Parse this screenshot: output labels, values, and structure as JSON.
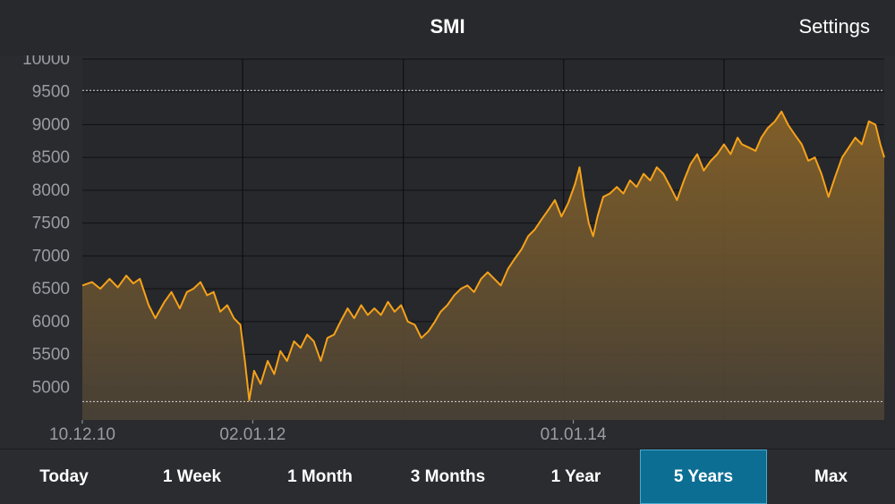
{
  "header": {
    "title": "SMI",
    "settings_label": "Settings"
  },
  "tabs": [
    {
      "label": "Today",
      "active": false
    },
    {
      "label": "1 Week",
      "active": false
    },
    {
      "label": "1 Month",
      "active": false
    },
    {
      "label": "3 Months",
      "active": false
    },
    {
      "label": "1 Year",
      "active": false
    },
    {
      "label": "5 Years",
      "active": true
    },
    {
      "label": "Max",
      "active": false
    }
  ],
  "colors": {
    "line": "#f5a21a",
    "fill_top": "#8a6428",
    "fill_bottom": "#4a4236",
    "active_tab": "#0d6e94",
    "background": "#2a2b2f"
  },
  "chart_data": {
    "type": "area",
    "title": "",
    "xlabel": "",
    "ylabel": "",
    "ylim": [
      4500,
      10000
    ],
    "yticks": [
      5000,
      5500,
      6000,
      6500,
      7000,
      7500,
      8000,
      8500,
      9000,
      9500,
      10000
    ],
    "xticks": [
      "10.12.10",
      "02.01.12",
      "01.01.14"
    ],
    "xlim": [
      "2010-12-10",
      "2015-12-10"
    ],
    "grid": true,
    "reference_lines": [
      9520,
      4780
    ],
    "series": [
      {
        "values": [
          [
            "2010-12-10",
            6550
          ],
          [
            "2011-01-01",
            6600
          ],
          [
            "2011-01-20",
            6500
          ],
          [
            "2011-02-10",
            6650
          ],
          [
            "2011-03-01",
            6520
          ],
          [
            "2011-03-20",
            6700
          ],
          [
            "2011-04-05",
            6580
          ],
          [
            "2011-04-20",
            6650
          ],
          [
            "2011-05-10",
            6250
          ],
          [
            "2011-05-25",
            6050
          ],
          [
            "2011-06-15",
            6300
          ],
          [
            "2011-07-01",
            6450
          ],
          [
            "2011-07-20",
            6200
          ],
          [
            "2011-08-05",
            6450
          ],
          [
            "2011-08-20",
            6500
          ],
          [
            "2011-09-05",
            6600
          ],
          [
            "2011-09-20",
            6400
          ],
          [
            "2011-10-05",
            6450
          ],
          [
            "2011-10-20",
            6150
          ],
          [
            "2011-11-05",
            6250
          ],
          [
            "2011-11-20",
            6050
          ],
          [
            "2011-12-05",
            5950
          ],
          [
            "2011-12-15",
            5400
          ],
          [
            "2011-12-25",
            4800
          ],
          [
            "2012-01-05",
            5250
          ],
          [
            "2012-01-20",
            5050
          ],
          [
            "2012-02-05",
            5400
          ],
          [
            "2012-02-20",
            5200
          ],
          [
            "2012-03-05",
            5550
          ],
          [
            "2012-03-20",
            5400
          ],
          [
            "2012-04-05",
            5700
          ],
          [
            "2012-04-20",
            5600
          ],
          [
            "2012-05-05",
            5800
          ],
          [
            "2012-05-20",
            5700
          ],
          [
            "2012-06-05",
            5400
          ],
          [
            "2012-06-20",
            5750
          ],
          [
            "2012-07-05",
            5800
          ],
          [
            "2012-07-20",
            6000
          ],
          [
            "2012-08-05",
            6200
          ],
          [
            "2012-08-20",
            6050
          ],
          [
            "2012-09-05",
            6250
          ],
          [
            "2012-09-20",
            6100
          ],
          [
            "2012-10-05",
            6200
          ],
          [
            "2012-10-20",
            6100
          ],
          [
            "2012-11-05",
            6300
          ],
          [
            "2012-11-20",
            6150
          ],
          [
            "2012-12-05",
            6250
          ],
          [
            "2012-12-20",
            6000
          ],
          [
            "2013-01-05",
            5950
          ],
          [
            "2013-01-20",
            5750
          ],
          [
            "2013-02-05",
            5850
          ],
          [
            "2013-02-20",
            6000
          ],
          [
            "2013-03-05",
            6150
          ],
          [
            "2013-03-20",
            6250
          ],
          [
            "2013-04-05",
            6400
          ],
          [
            "2013-04-20",
            6500
          ],
          [
            "2013-05-05",
            6550
          ],
          [
            "2013-05-20",
            6450
          ],
          [
            "2013-06-05",
            6650
          ],
          [
            "2013-06-20",
            6750
          ],
          [
            "2013-07-05",
            6650
          ],
          [
            "2013-07-20",
            6550
          ],
          [
            "2013-08-05",
            6800
          ],
          [
            "2013-08-20",
            6950
          ],
          [
            "2013-09-05",
            7100
          ],
          [
            "2013-09-20",
            7300
          ],
          [
            "2013-10-05",
            7400
          ],
          [
            "2013-10-20",
            7550
          ],
          [
            "2013-11-05",
            7700
          ],
          [
            "2013-11-20",
            7850
          ],
          [
            "2013-12-05",
            7600
          ],
          [
            "2013-12-20",
            7800
          ],
          [
            "2014-01-05",
            8100
          ],
          [
            "2014-01-15",
            8350
          ],
          [
            "2014-01-25",
            7900
          ],
          [
            "2014-02-05",
            7500
          ],
          [
            "2014-02-15",
            7300
          ],
          [
            "2014-02-25",
            7600
          ],
          [
            "2014-03-10",
            7900
          ],
          [
            "2014-03-25",
            7950
          ],
          [
            "2014-04-10",
            8050
          ],
          [
            "2014-04-25",
            7950
          ],
          [
            "2014-05-10",
            8150
          ],
          [
            "2014-05-25",
            8050
          ],
          [
            "2014-06-10",
            8250
          ],
          [
            "2014-06-25",
            8150
          ],
          [
            "2014-07-10",
            8350
          ],
          [
            "2014-07-25",
            8250
          ],
          [
            "2014-08-10",
            8050
          ],
          [
            "2014-08-25",
            7850
          ],
          [
            "2014-09-10",
            8150
          ],
          [
            "2014-09-25",
            8400
          ],
          [
            "2014-10-10",
            8550
          ],
          [
            "2014-10-25",
            8300
          ],
          [
            "2014-11-10",
            8450
          ],
          [
            "2014-11-25",
            8550
          ],
          [
            "2014-12-10",
            8700
          ],
          [
            "2014-12-25",
            8550
          ],
          [
            "2015-01-10",
            8800
          ],
          [
            "2015-01-20",
            8700
          ],
          [
            "2015-02-05",
            8650
          ],
          [
            "2015-02-20",
            8600
          ],
          [
            "2015-03-05",
            8800
          ],
          [
            "2015-03-20",
            8950
          ],
          [
            "2015-04-05",
            9050
          ],
          [
            "2015-04-20",
            9200
          ],
          [
            "2015-05-05",
            9000
          ],
          [
            "2015-05-20",
            8850
          ],
          [
            "2015-06-05",
            8700
          ],
          [
            "2015-06-20",
            8450
          ],
          [
            "2015-07-05",
            8500
          ],
          [
            "2015-07-20",
            8250
          ],
          [
            "2015-08-05",
            7900
          ],
          [
            "2015-08-20",
            8200
          ],
          [
            "2015-09-05",
            8500
          ],
          [
            "2015-09-20",
            8650
          ],
          [
            "2015-10-05",
            8800
          ],
          [
            "2015-10-20",
            8700
          ],
          [
            "2015-11-05",
            9050
          ],
          [
            "2015-11-20",
            9000
          ],
          [
            "2015-12-01",
            8700
          ],
          [
            "2015-12-10",
            8500
          ]
        ]
      }
    ]
  }
}
